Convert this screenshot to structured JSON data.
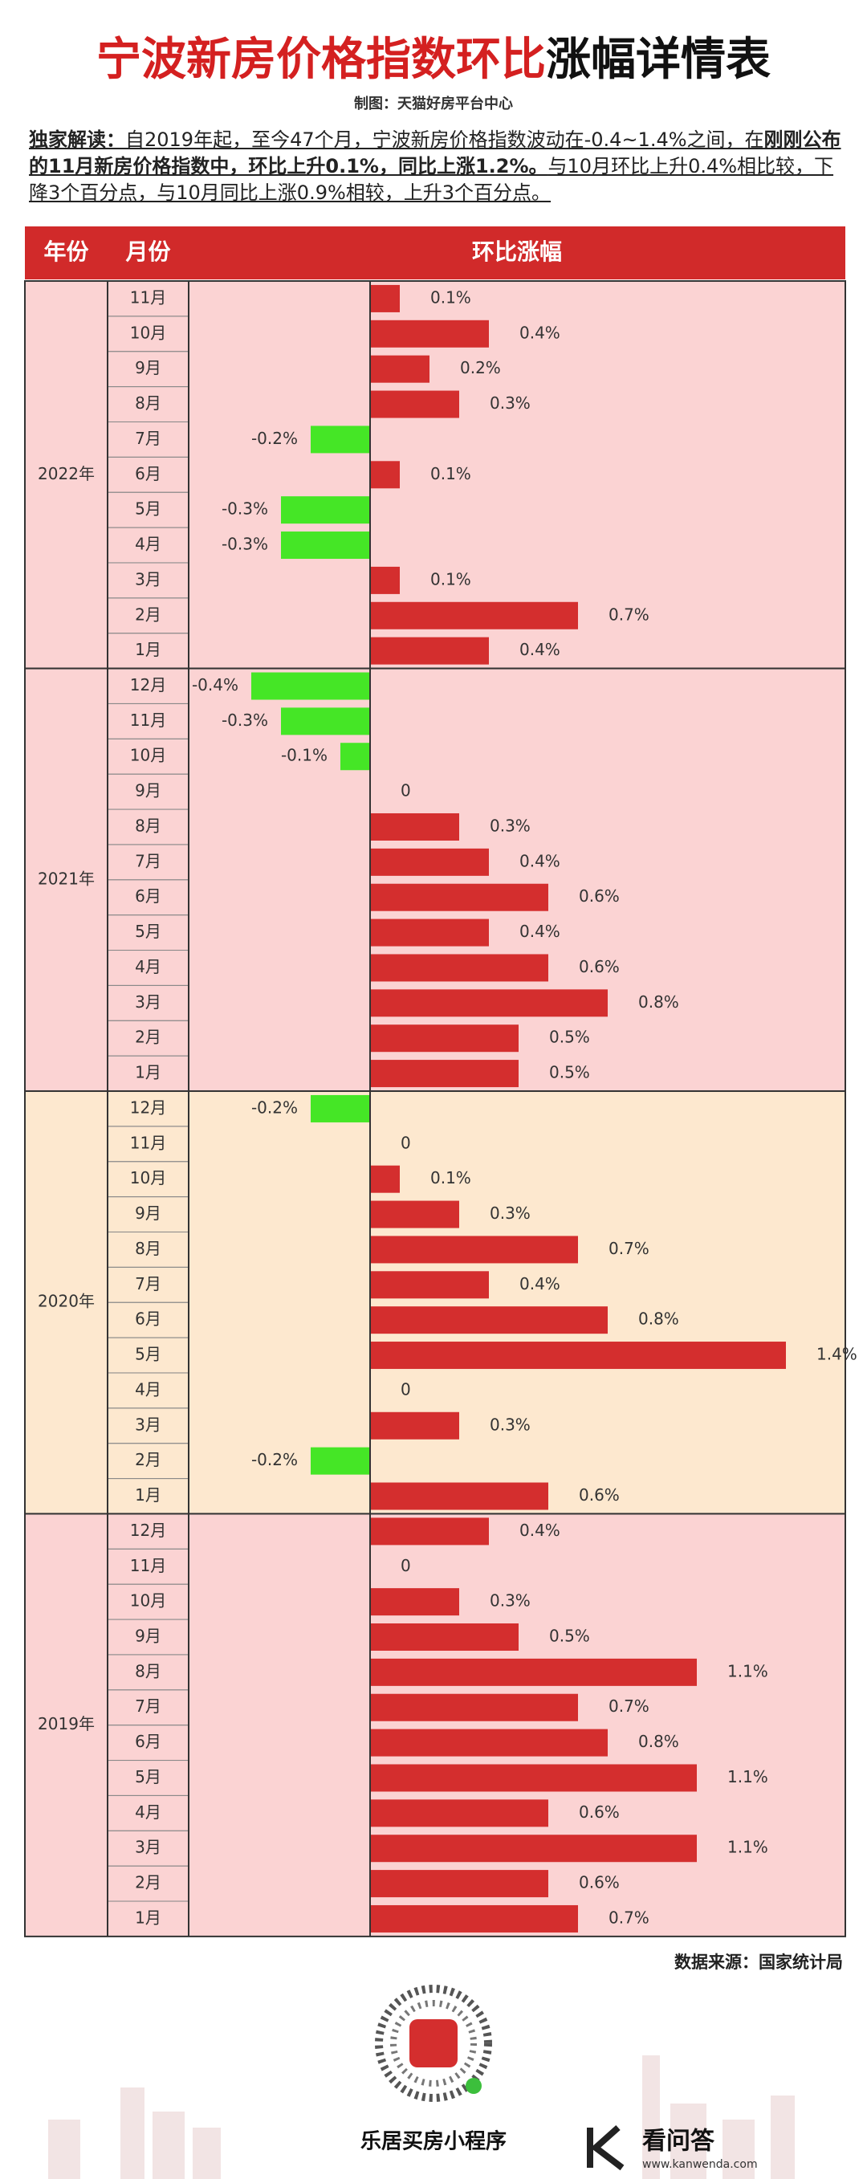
{
  "title": {
    "main": "宁波新房价格指数环比",
    "tail": "涨幅详情表"
  },
  "credit": "制图：天猫好房平台中心",
  "intro": [
    "独家解读：",
    "自2019年起，至今47个月，宁波新房价格指数波动在-0.4~1.4%之间，在",
    "刚刚公布的11月新房价格指数中，环比上升0.1%，同比上涨1.2%。",
    "与10月环比上升0.4%相比较，下降3个百分点，与10月同比上涨0.9%相较，上升3个百分点。"
  ],
  "chart_data": {
    "type": "bar",
    "columns": [
      "年份",
      "月份",
      "环比涨幅"
    ],
    "positive_color": "#d42e2e",
    "negative_color": "#45e626",
    "groups": [
      {
        "year": "2022年",
        "background": "#fbd3d3",
        "categories": [
          "11月",
          "10月",
          "9月",
          "8月",
          "7月",
          "6月",
          "5月",
          "4月",
          "3月",
          "2月",
          "1月"
        ],
        "values": [
          0.1,
          0.4,
          0.2,
          0.3,
          -0.2,
          0.1,
          -0.3,
          -0.3,
          0.1,
          0.7,
          0.4
        ],
        "value_labels": [
          "0.1%",
          "0.4%",
          "0.2%",
          "0.3%",
          "-0.2%",
          "0.1%",
          "-0.3%",
          "-0.3%",
          "0.1%",
          "0.7%",
          "0.4%"
        ]
      },
      {
        "year": "2021年",
        "background": "#fbd3d3",
        "categories": [
          "12月",
          "11月",
          "10月",
          "9月",
          "8月",
          "7月",
          "6月",
          "5月",
          "4月",
          "3月",
          "2月",
          "1月"
        ],
        "values": [
          -0.4,
          -0.3,
          -0.1,
          0,
          0.3,
          0.4,
          0.6,
          0.4,
          0.6,
          0.8,
          0.5,
          0.5
        ],
        "value_labels": [
          "-0.4%",
          "-0.3%",
          "-0.1%",
          "0",
          "0.3%",
          "0.4%",
          "0.6%",
          "0.4%",
          "0.6%",
          "0.8%",
          "0.5%",
          "0.5%"
        ]
      },
      {
        "year": "2020年",
        "background": "#fde8cf",
        "categories": [
          "12月",
          "11月",
          "10月",
          "9月",
          "8月",
          "7月",
          "6月",
          "5月",
          "4月",
          "3月",
          "2月",
          "1月"
        ],
        "values": [
          -0.2,
          0,
          0.1,
          0.3,
          0.7,
          0.4,
          0.8,
          1.4,
          0,
          0.3,
          -0.2,
          0.6
        ],
        "value_labels": [
          "-0.2%",
          "0",
          "0.1%",
          "0.3%",
          "0.7%",
          "0.4%",
          "0.8%",
          "1.4%",
          "0",
          "0.3%",
          "-0.2%",
          "0.6%"
        ]
      },
      {
        "year": "2019年",
        "background": "#fbd3d3",
        "categories": [
          "12月",
          "11月",
          "10月",
          "9月",
          "8月",
          "7月",
          "6月",
          "5月",
          "4月",
          "3月",
          "2月",
          "1月"
        ],
        "values": [
          0.4,
          0,
          0.3,
          0.5,
          1.1,
          0.7,
          0.8,
          1.1,
          0.6,
          1.1,
          0.6,
          0.7
        ],
        "value_labels": [
          "0.4%",
          "0",
          "0.3%",
          "0.5%",
          "1.1%",
          "0.7%",
          "0.8%",
          "1.1%",
          "0.6%",
          "1.1%",
          "0.6%",
          "0.7%"
        ]
      }
    ]
  },
  "source": "数据来源：国家统计局",
  "footer": {
    "mini_program": "乐居买房小程序",
    "brand": "看问答",
    "site": "www.kanwenda.com"
  }
}
